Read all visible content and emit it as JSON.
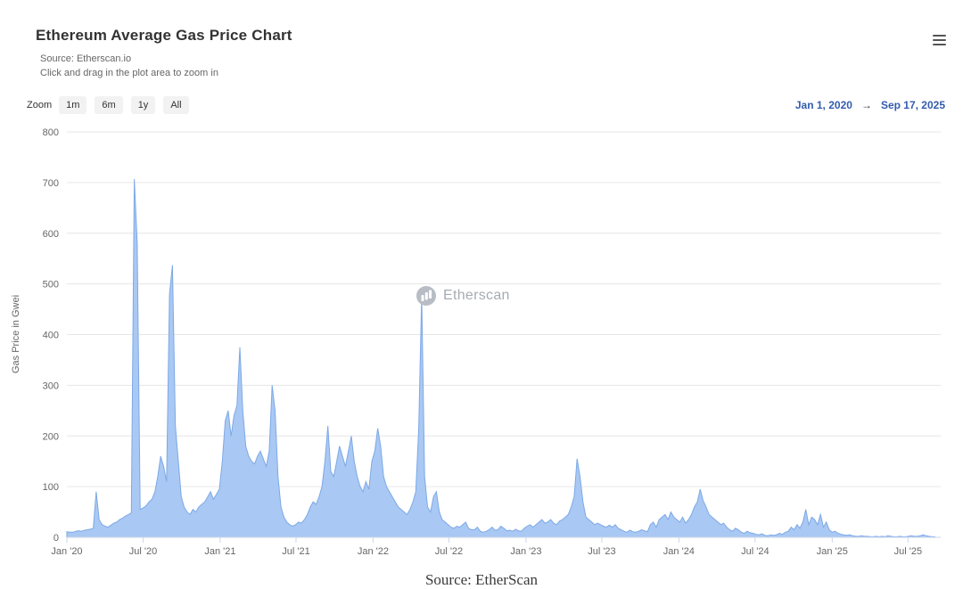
{
  "header": {
    "title": "Ethereum Average Gas Price Chart",
    "source_line": "Source: Etherscan.io",
    "hint_line": "Click and drag in the plot area to zoom in"
  },
  "toolbar": {
    "zoom_label": "Zoom",
    "buttons": [
      "1m",
      "6m",
      "1y",
      "All"
    ],
    "range_from": "Jan 1, 2020",
    "arrow": "→",
    "range_to": "Sep 17, 2025"
  },
  "watermark": {
    "icon": "etherscan-logo-icon",
    "text": "Etherscan"
  },
  "footer": {
    "caption": "Source: EtherScan"
  },
  "colors": {
    "accent": "#335cad",
    "area_fill": "#a9c8f3",
    "area_stroke": "#7da9e6",
    "gridline": "#e6e6e6",
    "axis_line": "#ccd6eb",
    "tick_text": "#666666"
  },
  "chart_data": {
    "type": "area",
    "title": "Ethereum Average Gas Price Chart",
    "xlabel": "",
    "ylabel": "Gas Price in Gwei",
    "ylim": [
      0,
      800
    ],
    "y_ticks": [
      0,
      100,
      200,
      300,
      400,
      500,
      600,
      700,
      800
    ],
    "x_ticks": [
      "Jan '20",
      "Jul '20",
      "Jan '21",
      "Jul '21",
      "Jan '22",
      "Jul '22",
      "Jan '23",
      "Jul '23",
      "Jan '24",
      "Jul '24",
      "Jan '25",
      "Jul '25"
    ],
    "x_start": "2020-01-01",
    "x_end": "2025-09-17",
    "step_days": 7,
    "grid": "horizontal-only",
    "legend": "none",
    "values": [
      11,
      10,
      10,
      12,
      13,
      12,
      14,
      15,
      16,
      18,
      90,
      35,
      25,
      22,
      20,
      24,
      28,
      30,
      35,
      38,
      42,
      45,
      48,
      707,
      580,
      55,
      58,
      62,
      70,
      75,
      90,
      120,
      160,
      140,
      110,
      480,
      537,
      220,
      150,
      80,
      60,
      50,
      45,
      55,
      50,
      60,
      65,
      70,
      80,
      90,
      75,
      85,
      95,
      150,
      230,
      250,
      200,
      240,
      260,
      375,
      250,
      180,
      160,
      150,
      145,
      160,
      170,
      155,
      140,
      170,
      300,
      250,
      120,
      60,
      40,
      30,
      25,
      22,
      25,
      30,
      28,
      35,
      45,
      60,
      70,
      65,
      80,
      100,
      150,
      220,
      130,
      120,
      150,
      180,
      160,
      140,
      170,
      200,
      150,
      120,
      100,
      90,
      110,
      95,
      150,
      170,
      215,
      180,
      120,
      100,
      90,
      80,
      70,
      60,
      55,
      50,
      45,
      55,
      70,
      90,
      215,
      478,
      120,
      60,
      50,
      80,
      90,
      50,
      35,
      30,
      25,
      20,
      18,
      22,
      20,
      25,
      30,
      18,
      15,
      15,
      20,
      12,
      10,
      12,
      15,
      20,
      14,
      15,
      22,
      18,
      13,
      14,
      12,
      16,
      13,
      12,
      18,
      22,
      25,
      20,
      25,
      30,
      35,
      28,
      30,
      35,
      28,
      25,
      32,
      35,
      40,
      45,
      60,
      80,
      155,
      120,
      70,
      40,
      35,
      30,
      25,
      28,
      25,
      22,
      20,
      24,
      20,
      25,
      18,
      15,
      12,
      10,
      14,
      11,
      10,
      12,
      15,
      13,
      11,
      25,
      30,
      20,
      35,
      40,
      45,
      35,
      50,
      40,
      35,
      30,
      40,
      28,
      35,
      45,
      60,
      70,
      95,
      72,
      60,
      45,
      40,
      35,
      30,
      25,
      28,
      20,
      15,
      12,
      18,
      15,
      10,
      8,
      12,
      9,
      8,
      6,
      5,
      7,
      4,
      3,
      5,
      4,
      5,
      8,
      6,
      10,
      12,
      20,
      15,
      25,
      18,
      30,
      55,
      25,
      40,
      35,
      25,
      45,
      20,
      30,
      15,
      10,
      12,
      8,
      6,
      5,
      4,
      5,
      3,
      2,
      2,
      3,
      2,
      2,
      1,
      1,
      2,
      1,
      2,
      1,
      3,
      2,
      1,
      1,
      2,
      1,
      1,
      2,
      3,
      2,
      2,
      3,
      5,
      3,
      2,
      1,
      1
    ]
  }
}
